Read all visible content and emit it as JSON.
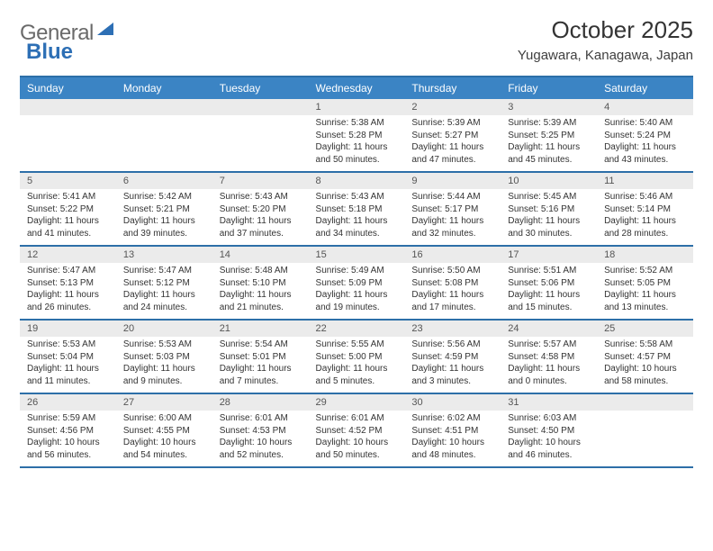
{
  "logo": {
    "text_gray": "General",
    "text_blue": "Blue"
  },
  "title": "October 2025",
  "location": "Yugawara, Kanagawa, Japan",
  "colors": {
    "header_bg": "#3b84c4",
    "header_border": "#2d6fa8",
    "daynum_bg": "#ebebeb",
    "text": "#333333",
    "logo_gray": "#6a6a6a",
    "logo_blue": "#2d6fb5"
  },
  "daysOfWeek": [
    "Sunday",
    "Monday",
    "Tuesday",
    "Wednesday",
    "Thursday",
    "Friday",
    "Saturday"
  ],
  "weeks": [
    [
      {
        "n": "",
        "sunrise": "",
        "sunset": "",
        "daylight": ""
      },
      {
        "n": "",
        "sunrise": "",
        "sunset": "",
        "daylight": ""
      },
      {
        "n": "",
        "sunrise": "",
        "sunset": "",
        "daylight": ""
      },
      {
        "n": "1",
        "sunrise": "Sunrise: 5:38 AM",
        "sunset": "Sunset: 5:28 PM",
        "daylight": "Daylight: 11 hours and 50 minutes."
      },
      {
        "n": "2",
        "sunrise": "Sunrise: 5:39 AM",
        "sunset": "Sunset: 5:27 PM",
        "daylight": "Daylight: 11 hours and 47 minutes."
      },
      {
        "n": "3",
        "sunrise": "Sunrise: 5:39 AM",
        "sunset": "Sunset: 5:25 PM",
        "daylight": "Daylight: 11 hours and 45 minutes."
      },
      {
        "n": "4",
        "sunrise": "Sunrise: 5:40 AM",
        "sunset": "Sunset: 5:24 PM",
        "daylight": "Daylight: 11 hours and 43 minutes."
      }
    ],
    [
      {
        "n": "5",
        "sunrise": "Sunrise: 5:41 AM",
        "sunset": "Sunset: 5:22 PM",
        "daylight": "Daylight: 11 hours and 41 minutes."
      },
      {
        "n": "6",
        "sunrise": "Sunrise: 5:42 AM",
        "sunset": "Sunset: 5:21 PM",
        "daylight": "Daylight: 11 hours and 39 minutes."
      },
      {
        "n": "7",
        "sunrise": "Sunrise: 5:43 AM",
        "sunset": "Sunset: 5:20 PM",
        "daylight": "Daylight: 11 hours and 37 minutes."
      },
      {
        "n": "8",
        "sunrise": "Sunrise: 5:43 AM",
        "sunset": "Sunset: 5:18 PM",
        "daylight": "Daylight: 11 hours and 34 minutes."
      },
      {
        "n": "9",
        "sunrise": "Sunrise: 5:44 AM",
        "sunset": "Sunset: 5:17 PM",
        "daylight": "Daylight: 11 hours and 32 minutes."
      },
      {
        "n": "10",
        "sunrise": "Sunrise: 5:45 AM",
        "sunset": "Sunset: 5:16 PM",
        "daylight": "Daylight: 11 hours and 30 minutes."
      },
      {
        "n": "11",
        "sunrise": "Sunrise: 5:46 AM",
        "sunset": "Sunset: 5:14 PM",
        "daylight": "Daylight: 11 hours and 28 minutes."
      }
    ],
    [
      {
        "n": "12",
        "sunrise": "Sunrise: 5:47 AM",
        "sunset": "Sunset: 5:13 PM",
        "daylight": "Daylight: 11 hours and 26 minutes."
      },
      {
        "n": "13",
        "sunrise": "Sunrise: 5:47 AM",
        "sunset": "Sunset: 5:12 PM",
        "daylight": "Daylight: 11 hours and 24 minutes."
      },
      {
        "n": "14",
        "sunrise": "Sunrise: 5:48 AM",
        "sunset": "Sunset: 5:10 PM",
        "daylight": "Daylight: 11 hours and 21 minutes."
      },
      {
        "n": "15",
        "sunrise": "Sunrise: 5:49 AM",
        "sunset": "Sunset: 5:09 PM",
        "daylight": "Daylight: 11 hours and 19 minutes."
      },
      {
        "n": "16",
        "sunrise": "Sunrise: 5:50 AM",
        "sunset": "Sunset: 5:08 PM",
        "daylight": "Daylight: 11 hours and 17 minutes."
      },
      {
        "n": "17",
        "sunrise": "Sunrise: 5:51 AM",
        "sunset": "Sunset: 5:06 PM",
        "daylight": "Daylight: 11 hours and 15 minutes."
      },
      {
        "n": "18",
        "sunrise": "Sunrise: 5:52 AM",
        "sunset": "Sunset: 5:05 PM",
        "daylight": "Daylight: 11 hours and 13 minutes."
      }
    ],
    [
      {
        "n": "19",
        "sunrise": "Sunrise: 5:53 AM",
        "sunset": "Sunset: 5:04 PM",
        "daylight": "Daylight: 11 hours and 11 minutes."
      },
      {
        "n": "20",
        "sunrise": "Sunrise: 5:53 AM",
        "sunset": "Sunset: 5:03 PM",
        "daylight": "Daylight: 11 hours and 9 minutes."
      },
      {
        "n": "21",
        "sunrise": "Sunrise: 5:54 AM",
        "sunset": "Sunset: 5:01 PM",
        "daylight": "Daylight: 11 hours and 7 minutes."
      },
      {
        "n": "22",
        "sunrise": "Sunrise: 5:55 AM",
        "sunset": "Sunset: 5:00 PM",
        "daylight": "Daylight: 11 hours and 5 minutes."
      },
      {
        "n": "23",
        "sunrise": "Sunrise: 5:56 AM",
        "sunset": "Sunset: 4:59 PM",
        "daylight": "Daylight: 11 hours and 3 minutes."
      },
      {
        "n": "24",
        "sunrise": "Sunrise: 5:57 AM",
        "sunset": "Sunset: 4:58 PM",
        "daylight": "Daylight: 11 hours and 0 minutes."
      },
      {
        "n": "25",
        "sunrise": "Sunrise: 5:58 AM",
        "sunset": "Sunset: 4:57 PM",
        "daylight": "Daylight: 10 hours and 58 minutes."
      }
    ],
    [
      {
        "n": "26",
        "sunrise": "Sunrise: 5:59 AM",
        "sunset": "Sunset: 4:56 PM",
        "daylight": "Daylight: 10 hours and 56 minutes."
      },
      {
        "n": "27",
        "sunrise": "Sunrise: 6:00 AM",
        "sunset": "Sunset: 4:55 PM",
        "daylight": "Daylight: 10 hours and 54 minutes."
      },
      {
        "n": "28",
        "sunrise": "Sunrise: 6:01 AM",
        "sunset": "Sunset: 4:53 PM",
        "daylight": "Daylight: 10 hours and 52 minutes."
      },
      {
        "n": "29",
        "sunrise": "Sunrise: 6:01 AM",
        "sunset": "Sunset: 4:52 PM",
        "daylight": "Daylight: 10 hours and 50 minutes."
      },
      {
        "n": "30",
        "sunrise": "Sunrise: 6:02 AM",
        "sunset": "Sunset: 4:51 PM",
        "daylight": "Daylight: 10 hours and 48 minutes."
      },
      {
        "n": "31",
        "sunrise": "Sunrise: 6:03 AM",
        "sunset": "Sunset: 4:50 PM",
        "daylight": "Daylight: 10 hours and 46 minutes."
      },
      {
        "n": "",
        "sunrise": "",
        "sunset": "",
        "daylight": ""
      }
    ]
  ]
}
